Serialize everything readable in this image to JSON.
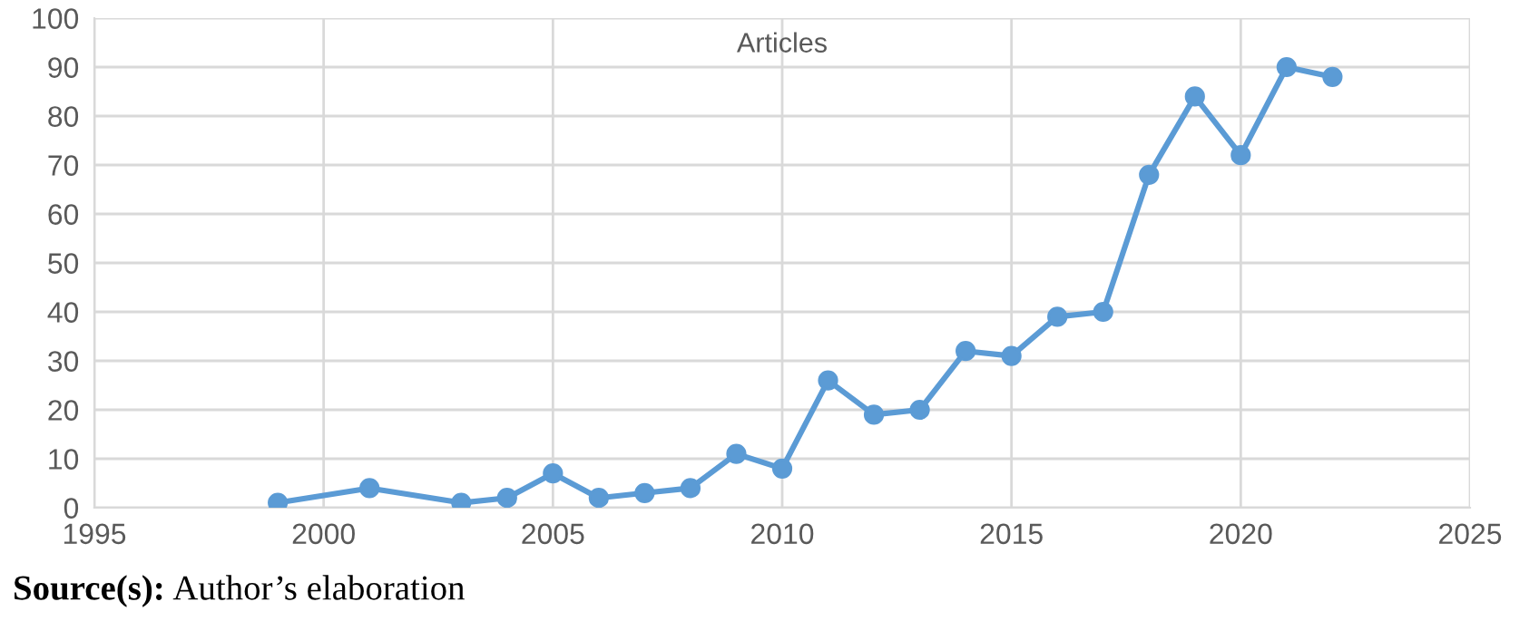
{
  "chart_data": {
    "type": "line",
    "title": "Articles",
    "x": [
      1999,
      2001,
      2003,
      2004,
      2005,
      2006,
      2007,
      2008,
      2009,
      2010,
      2011,
      2012,
      2013,
      2014,
      2015,
      2016,
      2017,
      2018,
      2019,
      2020,
      2021,
      2022
    ],
    "series": [
      {
        "color": "#5b9bd5",
        "values": [
          1,
          4,
          1,
          2,
          7,
          2,
          3,
          4,
          11,
          8,
          26,
          19,
          20,
          32,
          31,
          39,
          40,
          68,
          84,
          72,
          90,
          88
        ]
      }
    ],
    "xlim": [
      1995,
      2025
    ],
    "xticks": [
      1995,
      2000,
      2005,
      2010,
      2015,
      2020,
      2025
    ],
    "ylim": [
      0,
      100
    ],
    "yticks": [
      0,
      10,
      20,
      30,
      40,
      50,
      60,
      70,
      80,
      90,
      100
    ],
    "grid": true,
    "marker": "circle",
    "line_style": "solid",
    "annotations": [
      "Source(s): Author’s elaboration"
    ]
  }
}
